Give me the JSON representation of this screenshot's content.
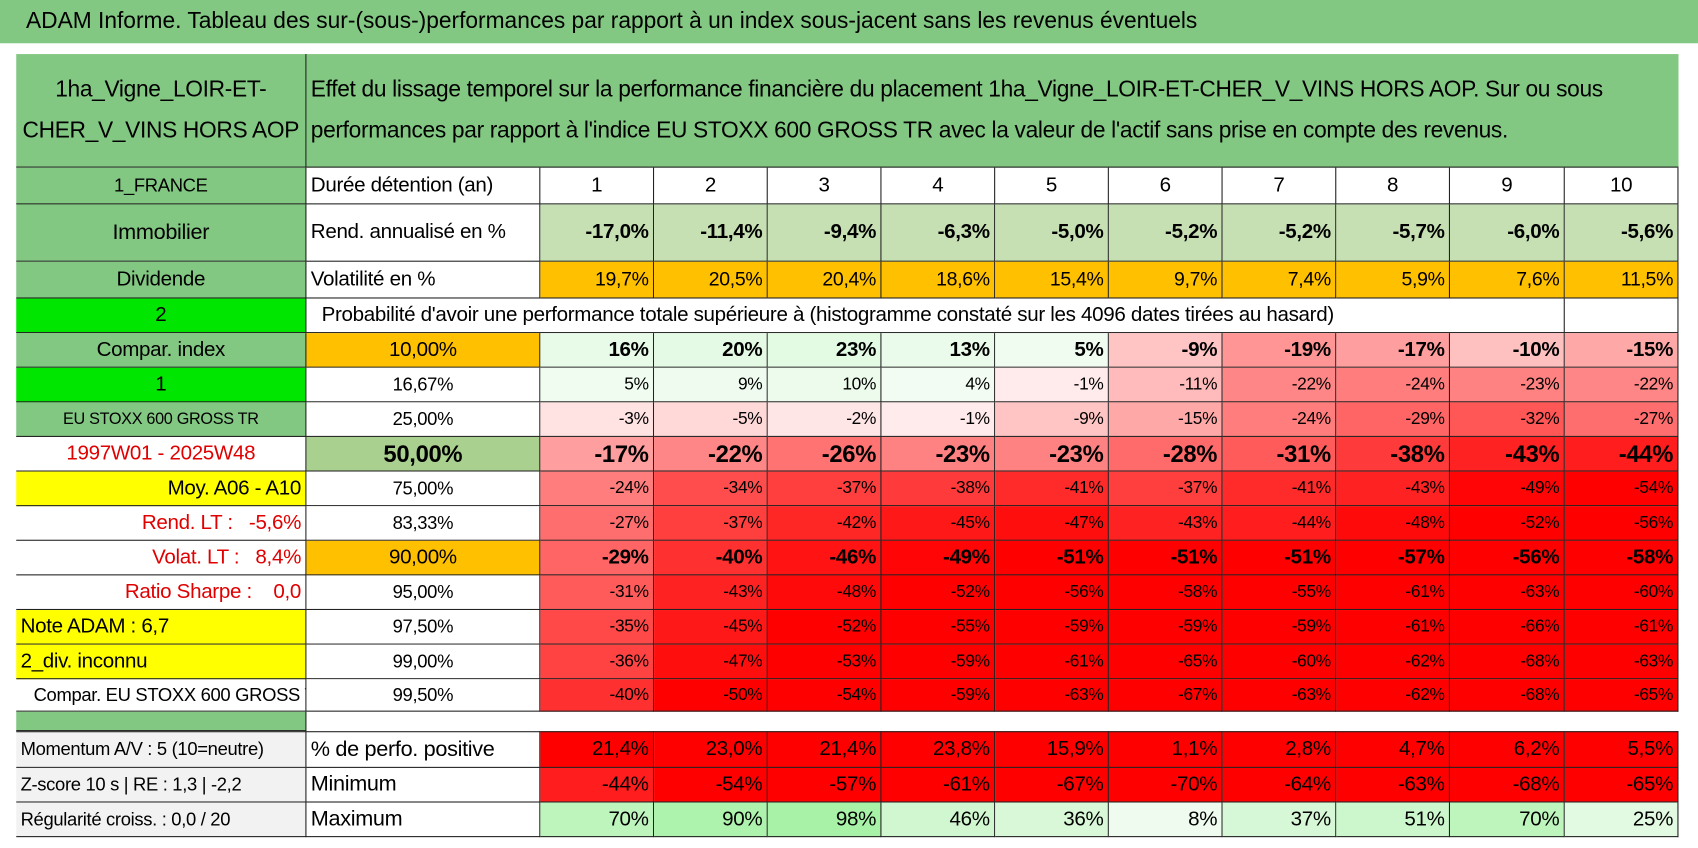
{
  "title": "ADAM Informe. Tableau des sur-(sous-)performances par rapport à un index sous-jacent sans les revenus éventuels",
  "asset_name": "1ha_Vigne_LOIR-ET-CHER_V_VINS HORS AOP",
  "description": "Effet du lissage temporel sur la performance financière du placement 1ha_Vigne_LOIR-ET-CHER_V_VINS HORS AOP. Sur ou sous performances par rapport à l'indice EU STOXX 600 GROSS TR avec la valeur de l'actif sans prise en compte des revenus.",
  "side_labels": [
    "1_FRANCE",
    "Immobilier",
    "Dividende",
    "2",
    "Compar. index",
    "1",
    "EU STOXX 600 GROSS TR",
    "1997W01 - 2025W48",
    "Moy. A06 - A10",
    "Rend. LT :   -5,6%",
    "Volat. LT :   8,4%",
    "Ratio Sharpe :    0,0",
    "Note ADAM : 6,7",
    "2_div. inconnu",
    "Compar. EU STOXX 600 GROSS TR"
  ],
  "header": {
    "label": "Durée détention (an)",
    "years": [
      1,
      2,
      3,
      4,
      5,
      6,
      7,
      8,
      9,
      10
    ]
  },
  "rend": {
    "label": "Rend. annualisé en %",
    "cells": [
      "-17,0%",
      "-11,4%",
      "-9,4%",
      "-6,3%",
      "-5,0%",
      "-5,2%",
      "-5,2%",
      "-5,7%",
      "-6,0%",
      "-5,6%"
    ]
  },
  "volat": {
    "label": "Volatilité en %",
    "cells": [
      "19,7%",
      "20,5%",
      "20,4%",
      "18,6%",
      "15,4%",
      "9,7%",
      "7,4%",
      "5,9%",
      "7,6%",
      "11,5%"
    ]
  },
  "prob_title": "Probabilité d'avoir une performance totale supérieure à (histogramme constaté sur les 4096 dates tirées au hasard)",
  "quantiles": [
    {
      "label": "10,00%",
      "cells": [
        "16%",
        "20%",
        "23%",
        "13%",
        "5%",
        "-9%",
        "-19%",
        "-17%",
        "-10%",
        "-15%"
      ]
    },
    {
      "label": "16,67%",
      "cells": [
        "5%",
        "9%",
        "10%",
        "4%",
        "-1%",
        "-11%",
        "-22%",
        "-24%",
        "-23%",
        "-22%"
      ]
    },
    {
      "label": "25,00%",
      "cells": [
        "-3%",
        "-5%",
        "-2%",
        "-1%",
        "-9%",
        "-15%",
        "-24%",
        "-29%",
        "-32%",
        "-27%"
      ]
    },
    {
      "label": "50,00%",
      "cells": [
        "-17%",
        "-22%",
        "-26%",
        "-23%",
        "-23%",
        "-28%",
        "-31%",
        "-38%",
        "-43%",
        "-44%"
      ]
    },
    {
      "label": "75,00%",
      "cells": [
        "-24%",
        "-34%",
        "-37%",
        "-38%",
        "-41%",
        "-37%",
        "-41%",
        "-43%",
        "-49%",
        "-54%"
      ]
    },
    {
      "label": "83,33%",
      "cells": [
        "-27%",
        "-37%",
        "-42%",
        "-45%",
        "-47%",
        "-43%",
        "-44%",
        "-48%",
        "-52%",
        "-56%"
      ]
    },
    {
      "label": "90,00%",
      "cells": [
        "-29%",
        "-40%",
        "-46%",
        "-49%",
        "-51%",
        "-51%",
        "-51%",
        "-57%",
        "-56%",
        "-58%"
      ]
    },
    {
      "label": "95,00%",
      "cells": [
        "-31%",
        "-43%",
        "-48%",
        "-52%",
        "-56%",
        "-58%",
        "-55%",
        "-61%",
        "-63%",
        "-60%"
      ]
    },
    {
      "label": "97,50%",
      "cells": [
        "-35%",
        "-45%",
        "-52%",
        "-55%",
        "-59%",
        "-59%",
        "-59%",
        "-61%",
        "-66%",
        "-61%"
      ]
    },
    {
      "label": "99,00%",
      "cells": [
        "-36%",
        "-47%",
        "-53%",
        "-59%",
        "-61%",
        "-65%",
        "-60%",
        "-62%",
        "-68%",
        "-63%"
      ]
    },
    {
      "label": "99,50%",
      "cells": [
        "-40%",
        "-50%",
        "-54%",
        "-59%",
        "-63%",
        "-67%",
        "-63%",
        "-62%",
        "-68%",
        "-65%"
      ]
    }
  ],
  "summary": [
    {
      "side": "Momentum A/V : 5 (10=neutre)",
      "label": "% de perfo. positive",
      "cells": [
        "21,4%",
        "23,0%",
        "21,4%",
        "23,8%",
        "15,9%",
        "1,1%",
        "2,8%",
        "4,7%",
        "6,2%",
        "5,5%"
      ]
    },
    {
      "side": "Z-score 10 s | RE : 1,3 | -2,2",
      "label": "Minimum",
      "cells": [
        "-44%",
        "-54%",
        "-57%",
        "-61%",
        "-67%",
        "-70%",
        "-64%",
        "-63%",
        "-68%",
        "-65%"
      ]
    },
    {
      "side": "Régularité croiss. : 0,0 / 20",
      "label": "Maximum",
      "cells": [
        "70%",
        "90%",
        "98%",
        "46%",
        "36%",
        "8%",
        "37%",
        "51%",
        "70%",
        "25%"
      ]
    }
  ]
}
